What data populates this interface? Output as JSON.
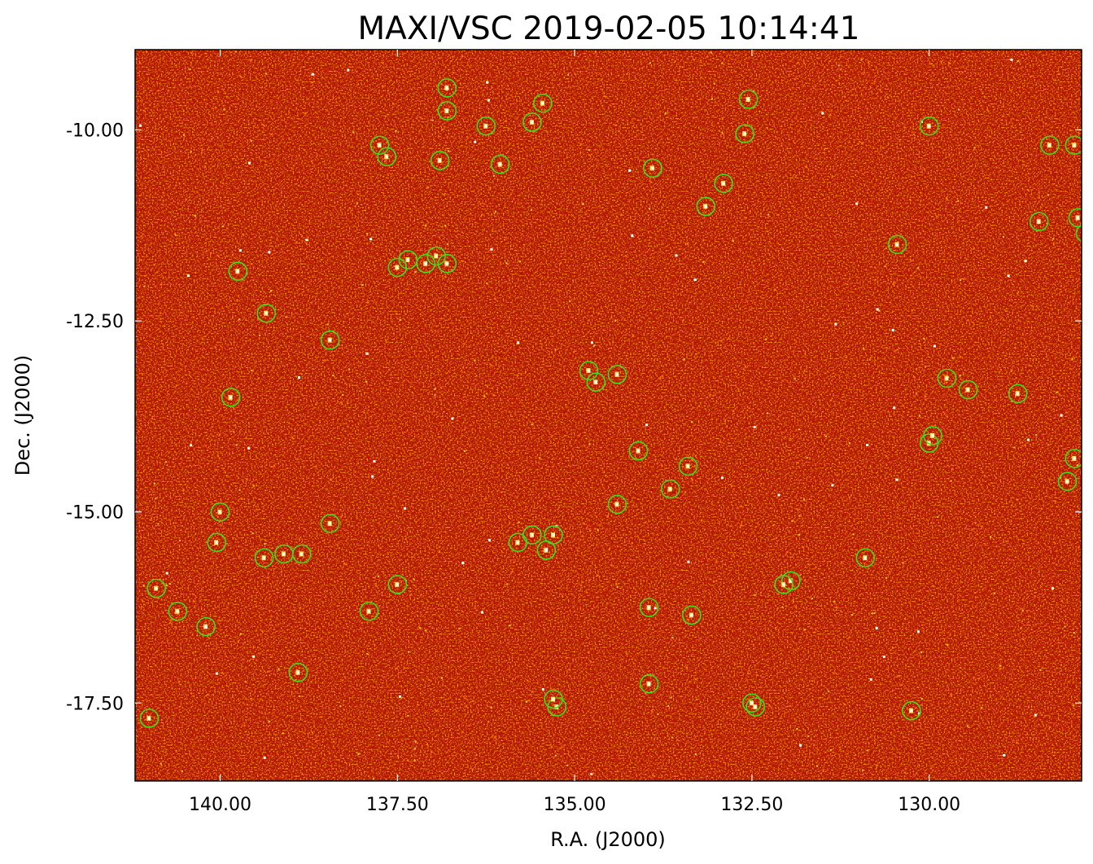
{
  "chart_data": {
    "type": "scatter",
    "title": "MAXI/VSC 2019-02-05 10:14:41",
    "xlabel": "R.A. (J2000)",
    "ylabel": "Dec. (J2000)",
    "xlim": [
      141.2,
      127.85
    ],
    "ylim": [
      -8.95,
      -18.52
    ],
    "x_ticks": [
      140.0,
      137.5,
      135.0,
      132.5,
      130.0
    ],
    "x_tick_labels": [
      "140.00",
      "137.50",
      "135.00",
      "132.50",
      "130.00"
    ],
    "y_ticks": [
      -17.5,
      -15.0,
      -12.5,
      -10.0
    ],
    "y_tick_labels": [
      "-17.50",
      "-15.00",
      "-12.50",
      "-10.00"
    ],
    "grid": false,
    "image_background": {
      "description": "intensity map",
      "base_color": "#b31400",
      "hot_color": "#ffffff"
    },
    "marker": {
      "shape": "open circle",
      "color": "#3fdd1f"
    },
    "series": [
      {
        "x": [
          141.0,
          140.6,
          140.9,
          140.2,
          140.05,
          140.0,
          139.85,
          139.35,
          139.75,
          138.9,
          139.38,
          139.1,
          138.85,
          138.45,
          138.45,
          137.5,
          137.75,
          137.1,
          136.05,
          136.25,
          136.8,
          136.8,
          137.5,
          137.9,
          137.65,
          136.8,
          136.95,
          137.35,
          136.9,
          135.6,
          135.45,
          135.4,
          135.8,
          135.6,
          135.3,
          135.25,
          135.3,
          134.7,
          134.4,
          134.8,
          134.4,
          134.1,
          133.9,
          133.95,
          133.65,
          133.95,
          133.35,
          133.4,
          133.15,
          132.9,
          132.6,
          132.55,
          132.45,
          132.5,
          131.95,
          132.05,
          130.9,
          130.45,
          130.25,
          130.0,
          130.0,
          129.95,
          129.75,
          129.45,
          128.75,
          128.45,
          128.3,
          127.95,
          127.9,
          127.95,
          128.05,
          127.8
        ],
        "y": [
          -17.7,
          -16.3,
          -16.0,
          -16.5,
          -15.4,
          -15.0,
          -13.5,
          -12.4,
          -11.85,
          -17.1,
          -15.6,
          -15.55,
          -15.55,
          -15.15,
          -12.75,
          -11.8,
          -10.2,
          -11.75,
          -10.45,
          -9.95,
          -9.45,
          -9.75,
          -15.95,
          -16.3,
          -10.35,
          -11.75,
          -11.65,
          -11.7,
          -10.4,
          -9.9,
          -9.65,
          -15.5,
          -15.4,
          -15.3,
          -15.3,
          -17.55,
          -17.45,
          -13.3,
          -13.2,
          -13.15,
          -14.9,
          -14.2,
          -10.5,
          -17.25,
          -14.7,
          -16.25,
          -16.35,
          -14.4,
          -11.0,
          -10.7,
          -10.05,
          -9.6,
          -17.55,
          -17.5,
          -15.9,
          -15.95,
          -15.6,
          -11.5,
          -17.6,
          -9.95,
          -14.1,
          -14.0,
          -13.25,
          -13.4,
          -13.45,
          -11.2,
          -10.2,
          -10.2,
          -11.15,
          -14.3,
          -14.6,
          -11.35
        ]
      }
    ]
  }
}
